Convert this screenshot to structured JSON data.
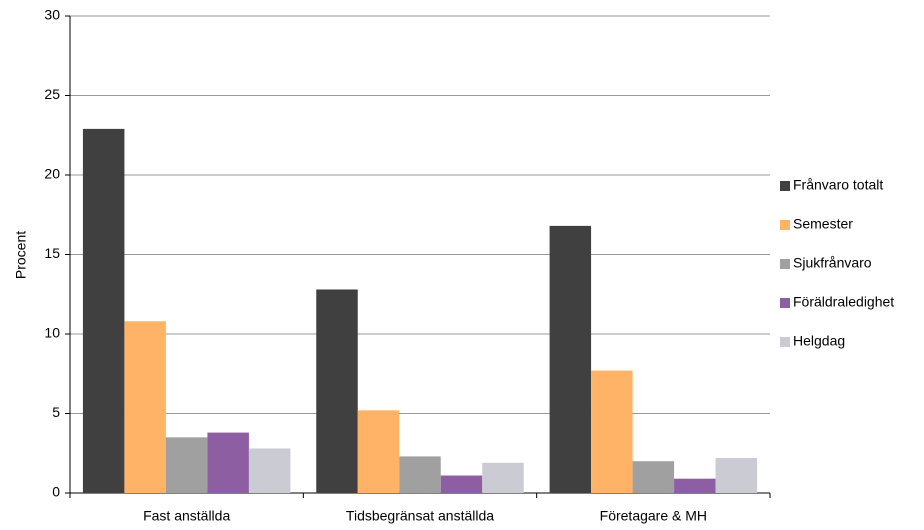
{
  "chart_data": {
    "type": "bar",
    "y_label": "Procent",
    "categories": [
      "Fast anställda",
      "Tidsbegränsat anställda",
      "Företagare & MH"
    ],
    "series": [
      {
        "name": "Frånvaro totalt",
        "color": "#404040",
        "values": [
          22.9,
          12.8,
          16.8
        ]
      },
      {
        "name": "Semester",
        "color": "#ffb366",
        "values": [
          10.8,
          5.2,
          7.7
        ]
      },
      {
        "name": "Sjukfrånvaro",
        "color": "#a0a0a0",
        "values": [
          3.5,
          2.3,
          2.0
        ]
      },
      {
        "name": "Föräldraledighet",
        "color": "#8e5ea2",
        "values": [
          3.8,
          1.1,
          0.9
        ]
      },
      {
        "name": "Helgdag",
        "color": "#cbcbd3",
        "values": [
          2.8,
          1.9,
          2.2
        ]
      }
    ],
    "ylim": [
      0,
      30
    ],
    "yticks": [
      0,
      5,
      10,
      15,
      20,
      25,
      30
    ],
    "grid": true,
    "legend": "right"
  }
}
